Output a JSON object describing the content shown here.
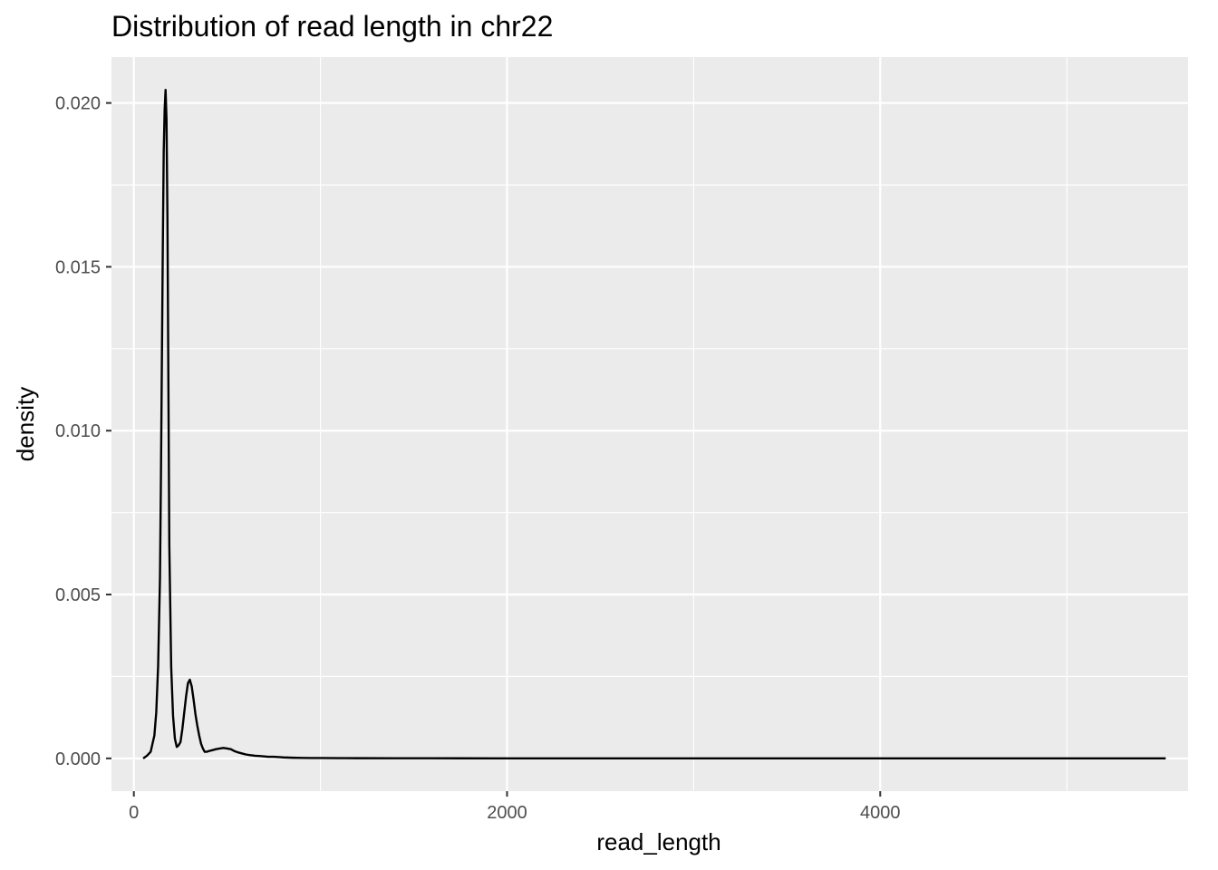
{
  "chart_data": {
    "type": "line",
    "title": "Distribution of read length in chr22",
    "xlabel": "read_length",
    "ylabel": "density",
    "xlim": [
      -120,
      5650
    ],
    "ylim": [
      -0.001,
      0.0214
    ],
    "x_ticks": [
      0,
      2000,
      4000
    ],
    "x_tick_labels": [
      "0",
      "2000",
      "4000"
    ],
    "x_minor_ticks": [
      1000,
      3000,
      5000
    ],
    "y_ticks": [
      0.0,
      0.005,
      0.01,
      0.015,
      0.02
    ],
    "y_tick_labels": [
      "0.000",
      "0.005",
      "0.010",
      "0.015",
      "0.020"
    ],
    "y_minor_ticks": [
      0.0025,
      0.0075,
      0.0125,
      0.0175
    ],
    "grid": true,
    "panel_background": "#ebebeb",
    "line_color": "#000000",
    "series": [
      {
        "x": [
          50,
          70,
          90,
          110,
          120,
          130,
          140,
          145,
          150,
          155,
          160,
          165,
          170,
          175,
          180,
          185,
          190,
          200,
          210,
          220,
          230,
          240,
          250,
          260,
          270,
          280,
          290,
          300,
          310,
          320,
          330,
          340,
          350,
          360,
          370,
          380,
          390,
          400,
          420,
          440,
          460,
          480,
          500,
          520,
          540,
          560,
          580,
          600,
          620,
          650,
          680,
          700,
          720,
          750,
          780,
          800,
          850,
          900,
          950,
          1000,
          1100,
          1200,
          1400,
          1600,
          2000,
          2500,
          3000,
          3500,
          4000,
          4500,
          5000,
          5530
        ],
        "y": [
          0.0,
          8e-05,
          0.0002,
          0.0007,
          0.0014,
          0.0028,
          0.0055,
          0.0085,
          0.012,
          0.0155,
          0.0185,
          0.0198,
          0.0204,
          0.0195,
          0.0165,
          0.0115,
          0.0065,
          0.0028,
          0.0013,
          0.0006,
          0.00035,
          0.0004,
          0.0005,
          0.0009,
          0.0014,
          0.0019,
          0.0023,
          0.0024,
          0.0022,
          0.0018,
          0.00135,
          0.001,
          0.0007,
          0.00045,
          0.0003,
          0.0002,
          0.0002,
          0.00022,
          0.00025,
          0.00028,
          0.0003,
          0.00032,
          0.0003,
          0.00028,
          0.00022,
          0.00018,
          0.00015,
          0.00012,
          0.0001,
          8e-05,
          7e-05,
          6e-05,
          5e-05,
          5e-05,
          4e-05,
          3e-05,
          2e-05,
          1.5e-05,
          1e-05,
          1e-05,
          8e-06,
          6e-06,
          4e-06,
          3e-06,
          2e-06,
          1e-06,
          1e-06,
          5e-07,
          5e-07,
          3e-07,
          2e-07,
          0.0
        ]
      }
    ]
  }
}
